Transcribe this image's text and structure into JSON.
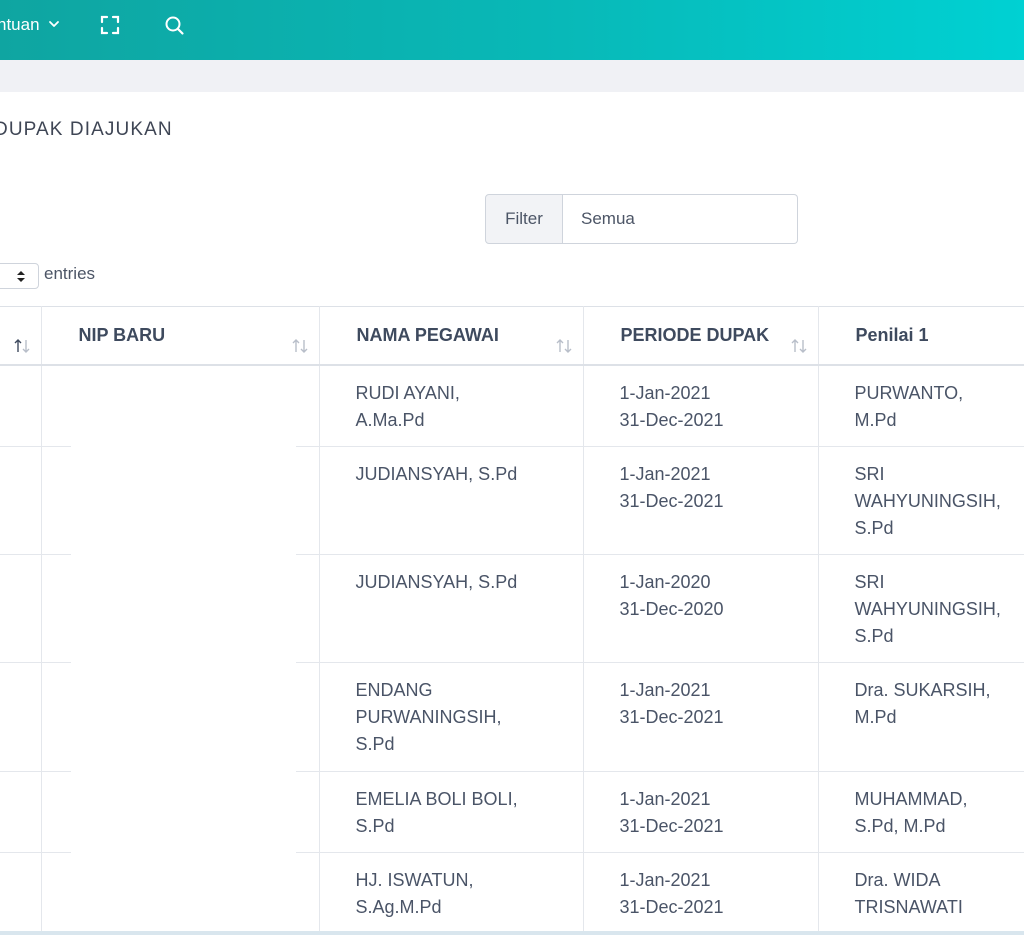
{
  "header": {
    "menu_bantuan_label": "ntuan",
    "icons": [
      "chevron-down-icon",
      "fullscreen-icon",
      "search-icon"
    ]
  },
  "page": {
    "title": "DUPAK DIAJUKAN"
  },
  "filter": {
    "label": "Filter",
    "value": "Semua"
  },
  "length": {
    "suffix": "entries"
  },
  "table": {
    "columns": [
      {
        "key": "col0",
        "label": ""
      },
      {
        "key": "nip_baru",
        "label": "NIP BARU"
      },
      {
        "key": "nama_pegawai",
        "label": "NAMA PEGAWAI"
      },
      {
        "key": "periode_dupak",
        "label": "PERIODE DUPAK"
      },
      {
        "key": "penilai_1",
        "label": "Penilai 1"
      }
    ],
    "rows": [
      {
        "nama": [
          "RUDI AYANI,",
          "A.Ma.Pd"
        ],
        "periode": [
          "1-Jan-2021",
          "31-Dec-2021"
        ],
        "penilai": [
          "PURWANTO,",
          "M.Pd"
        ]
      },
      {
        "nama": [
          "JUDIANSYAH, S.Pd"
        ],
        "periode": [
          "1-Jan-2021",
          "31-Dec-2021"
        ],
        "penilai": [
          "SRI",
          "WAHYUNINGSIH,",
          "S.Pd"
        ]
      },
      {
        "nama": [
          "JUDIANSYAH, S.Pd"
        ],
        "periode": [
          "1-Jan-2020",
          "31-Dec-2020"
        ],
        "penilai": [
          "SRI",
          "WAHYUNINGSIH,",
          "S.Pd"
        ]
      },
      {
        "nama": [
          "ENDANG",
          "PURWANINGSIH,",
          "S.Pd"
        ],
        "periode": [
          "1-Jan-2021",
          "31-Dec-2021"
        ],
        "penilai": [
          "Dra. SUKARSIH,",
          "M.Pd"
        ]
      },
      {
        "nama": [
          "EMELIA BOLI BOLI,",
          "S.Pd"
        ],
        "periode": [
          "1-Jan-2021",
          "31-Dec-2021"
        ],
        "penilai": [
          "MUHAMMAD,",
          "S.Pd, M.Pd"
        ]
      },
      {
        "nama": [
          "HJ. ISWATUN,",
          "S.Ag.M.Pd"
        ],
        "periode": [
          "1-Jan-2021",
          "31-Dec-2021"
        ],
        "penilai": [
          "Dra. WIDA",
          "TRISNAWATI"
        ]
      }
    ]
  },
  "colors": {
    "header_gradient_start": "#0fa5a1",
    "header_gradient_end": "#00d1d3",
    "text": "#3e4a5e"
  }
}
